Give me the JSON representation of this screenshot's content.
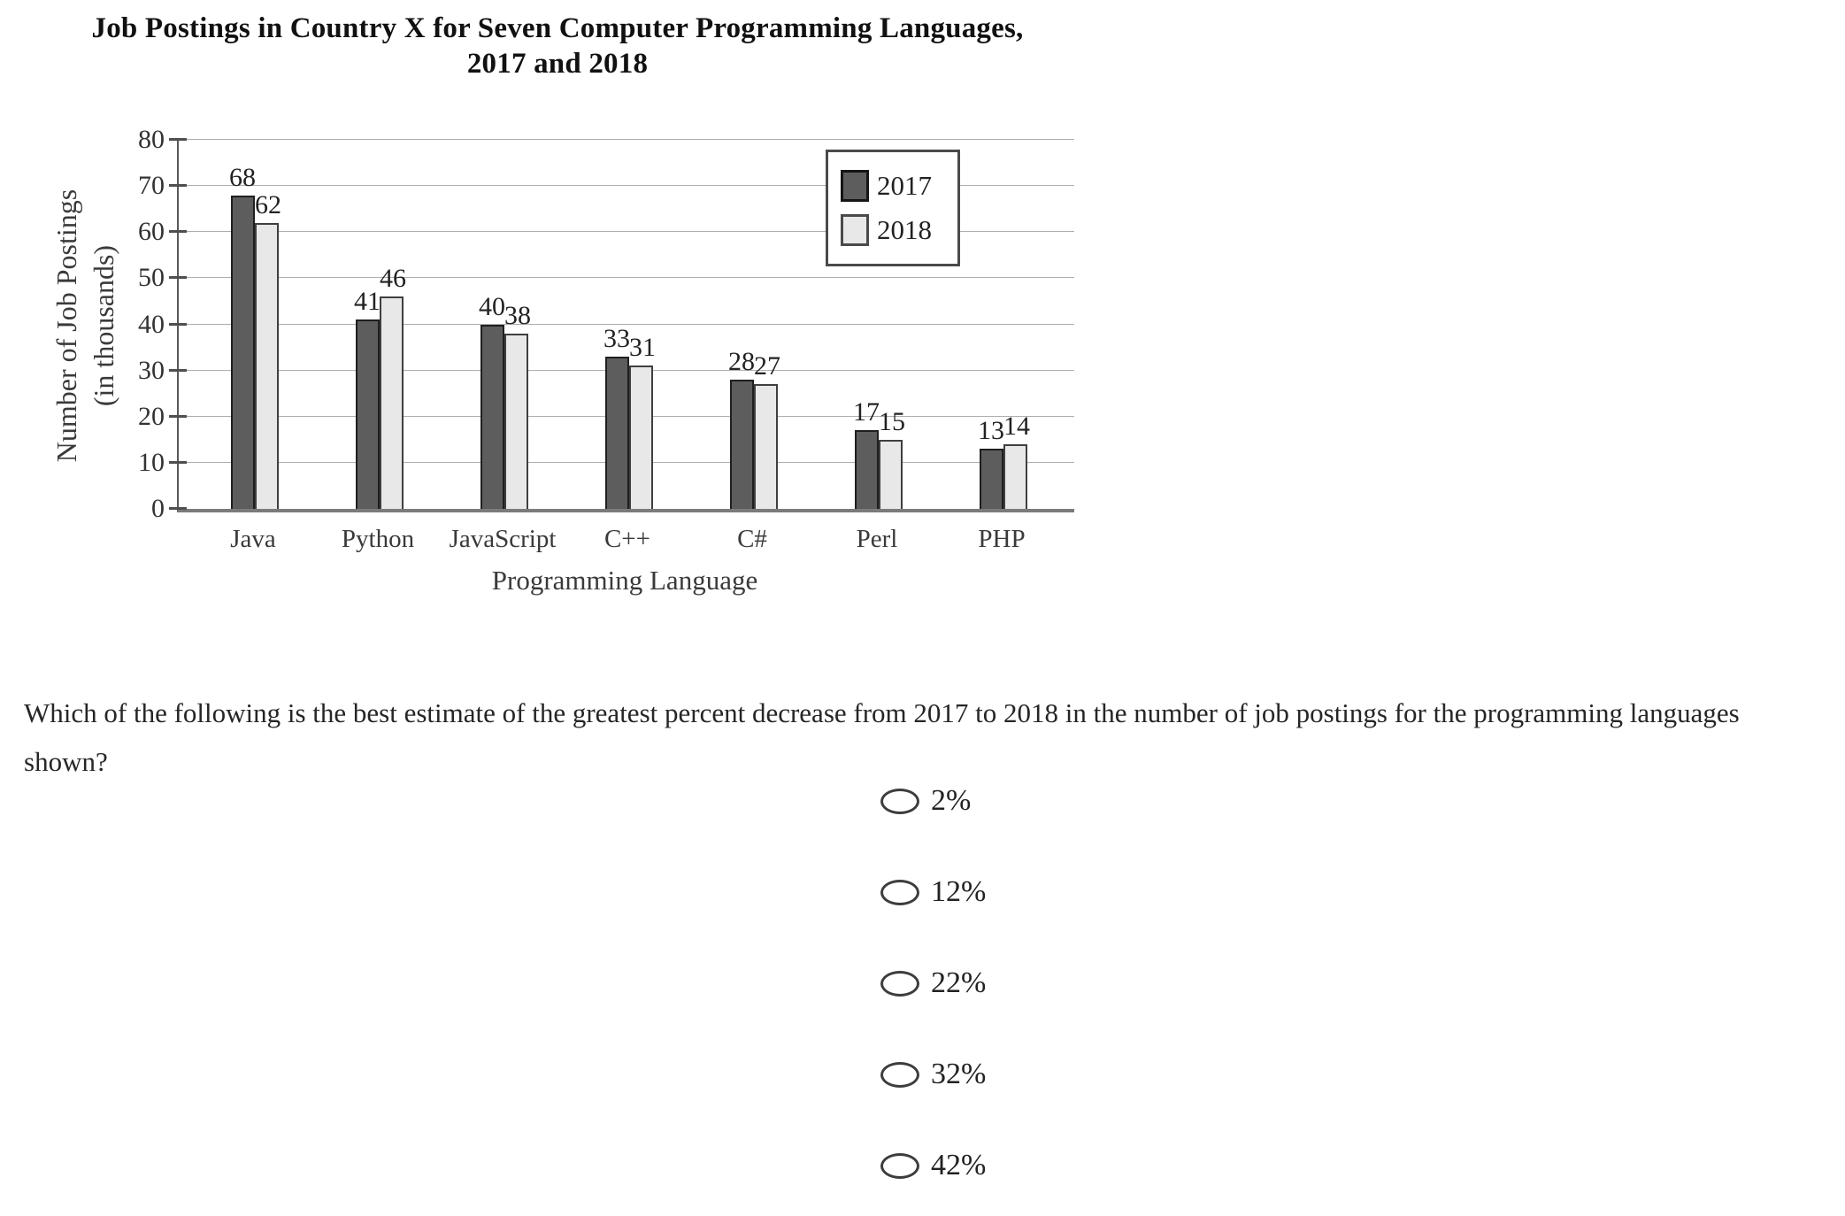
{
  "chart_data": {
    "type": "bar",
    "title": "Job Postings in Country X for Seven Computer Programming Languages, 2017 and 2018",
    "title_lines": [
      "Job Postings in Country X for Seven Computer Programming Languages,",
      "2017 and 2018"
    ],
    "categories": [
      "Java",
      "Python",
      "JavaScript",
      "C++",
      "C#",
      "Perl",
      "PHP"
    ],
    "series": [
      {
        "name": "2017",
        "values": [
          68,
          41,
          40,
          33,
          28,
          17,
          13
        ],
        "color": "#5d5d5d"
      },
      {
        "name": "2018",
        "values": [
          62,
          46,
          38,
          31,
          27,
          15,
          14
        ],
        "color": "#e8e8e8"
      }
    ],
    "xlabel": "Programming Language",
    "ylabel": "Number of Job Postings (in thousands)",
    "ylabel_lines": [
      "Number of Job Postings",
      "(in thousands)"
    ],
    "ylim": [
      0,
      80
    ],
    "ytick_step": 10,
    "grid": true,
    "legend_position": "top-right",
    "bar_value_labels": true
  },
  "question": {
    "text": "Which of the following is the best estimate of the greatest percent decrease from 2017 to 2018 in the number of job postings for the programming languages shown?",
    "options": [
      "2%",
      "12%",
      "22%",
      "32%",
      "42%"
    ]
  }
}
